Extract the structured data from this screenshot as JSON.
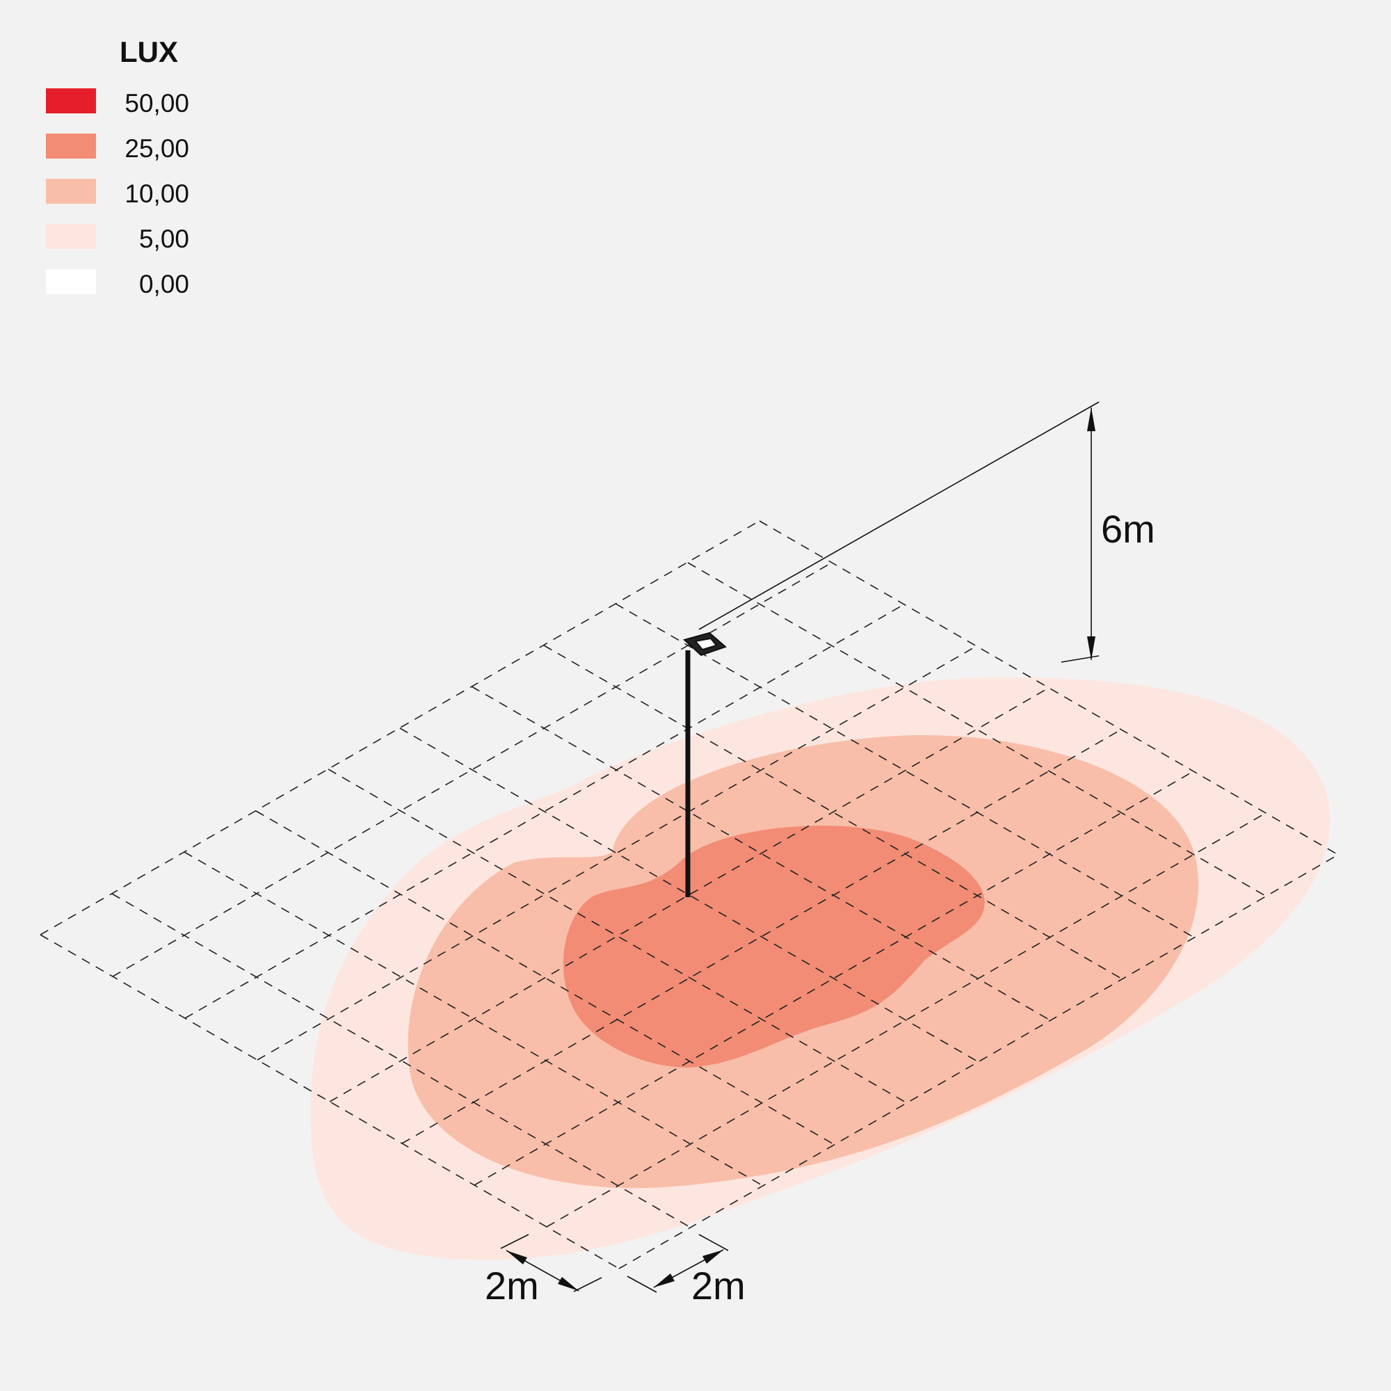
{
  "legend": {
    "title": "LUX",
    "items": [
      {
        "value": "50,00",
        "color": "#e61e2b"
      },
      {
        "value": "25,00",
        "color": "#f28c75"
      },
      {
        "value": "10,00",
        "color": "#f8bea9"
      },
      {
        "value": "5,00",
        "color": "#fde6df"
      },
      {
        "value": "0,00",
        "color": "#ffffff"
      }
    ]
  },
  "dimensions": {
    "height": "6m",
    "grid_spacing_left": "2m",
    "grid_spacing_right": "2m"
  },
  "contour_colors": {
    "level_5": "#fde6df",
    "level_10": "#f8bea9",
    "level_25": "#f28c75"
  }
}
